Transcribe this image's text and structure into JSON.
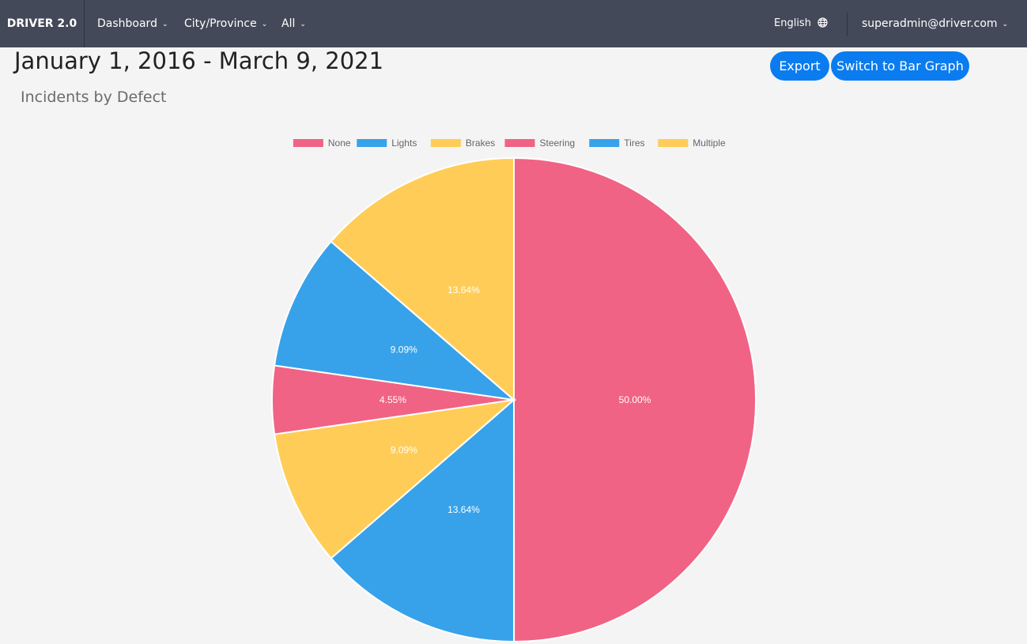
{
  "navbar": {
    "brand": "DRIVER 2.0",
    "dashboard_label": "Dashboard",
    "city_label": "City/Province",
    "all_label": "All",
    "language_label": "English",
    "user_label": "superadmin@driver.com",
    "icons": {
      "dropdown": "chevron-down-icon",
      "language": "globe-icon"
    },
    "background_color": "#434958"
  },
  "header": {
    "date_range": "January 1, 2016 - March 9, 2021",
    "subtitle": "Incidents by Defect"
  },
  "actions": {
    "export_label": "Export",
    "switch_label": "Switch to Bar Graph",
    "button_color": "#0a7cf0"
  },
  "chart_data": {
    "type": "pie",
    "title": "Incidents by Defect",
    "legend_position": "top",
    "legend": [
      "None",
      "Lights",
      "Brakes",
      "Steering",
      "Tires",
      "Multiple"
    ],
    "labels": [
      "None",
      "Lights",
      "Brakes",
      "Steering",
      "Tires",
      "Multiple"
    ],
    "values": [
      50.0,
      13.64,
      9.09,
      4.55,
      9.09,
      13.64
    ],
    "value_labels": [
      "50.00%",
      "13.64%",
      "9.09%",
      "4.55%",
      "9.09%",
      "13.64%"
    ],
    "colors": [
      "#f06384",
      "#37a2e9",
      "#ffcd57",
      "#f06384",
      "#37a2e9",
      "#ffcd57"
    ]
  }
}
